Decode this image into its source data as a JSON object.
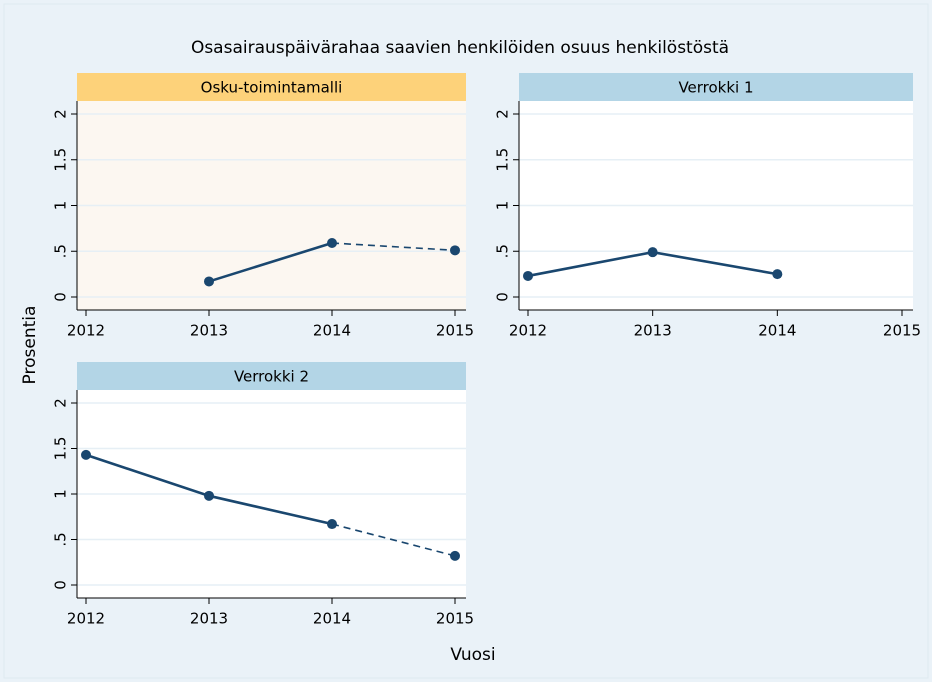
{
  "title": "Osasairauspäivärahaa saavien henkilöiden osuus henkilöstöstä",
  "y_label": "Prosentia",
  "x_label": "Vuosi",
  "chart_data": [
    {
      "type": "line",
      "title": "Osku-toimintamalli",
      "header_color": "#fdd27a",
      "plot_background": "#fcf7f1",
      "color": "#1a476f",
      "x": [
        2012,
        2013,
        2014,
        2015
      ],
      "values": [
        null,
        0.17,
        0.59,
        0.51
      ],
      "dashed_last_segment": true,
      "xlim": [
        2012,
        2015
      ],
      "xticks": [
        2012,
        2013,
        2014,
        2015
      ],
      "ylim": [
        0,
        2
      ],
      "yticks": [
        0,
        {
          "value": 0.5,
          "label": ".5"
        },
        1,
        1.5,
        2
      ],
      "grid": true
    },
    {
      "type": "line",
      "title": "Verrokki 1",
      "header_color": "#b3d5e6",
      "plot_background": "#ffffff",
      "color": "#1a476f",
      "x": [
        2012,
        2013,
        2014,
        2015
      ],
      "values": [
        0.23,
        0.49,
        0.25,
        null
      ],
      "dashed_last_segment": false,
      "xlim": [
        2012,
        2015
      ],
      "xticks": [
        2012,
        2013,
        2014,
        2015
      ],
      "ylim": [
        0,
        2
      ],
      "yticks": [
        0,
        {
          "value": 0.5,
          "label": ".5"
        },
        1,
        1.5,
        2
      ],
      "grid": true
    },
    {
      "type": "line",
      "title": "Verrokki 2",
      "header_color": "#b3d5e6",
      "plot_background": "#ffffff",
      "color": "#1a476f",
      "x": [
        2012,
        2013,
        2014,
        2015
      ],
      "values": [
        1.43,
        0.98,
        0.67,
        0.32
      ],
      "dashed_last_segment": true,
      "xlim": [
        2012,
        2015
      ],
      "xticks": [
        2012,
        2013,
        2014,
        2015
      ],
      "ylim": [
        0,
        2
      ],
      "yticks": [
        0,
        {
          "value": 0.5,
          "label": ".5"
        },
        1,
        1.5,
        2
      ],
      "grid": true
    }
  ]
}
